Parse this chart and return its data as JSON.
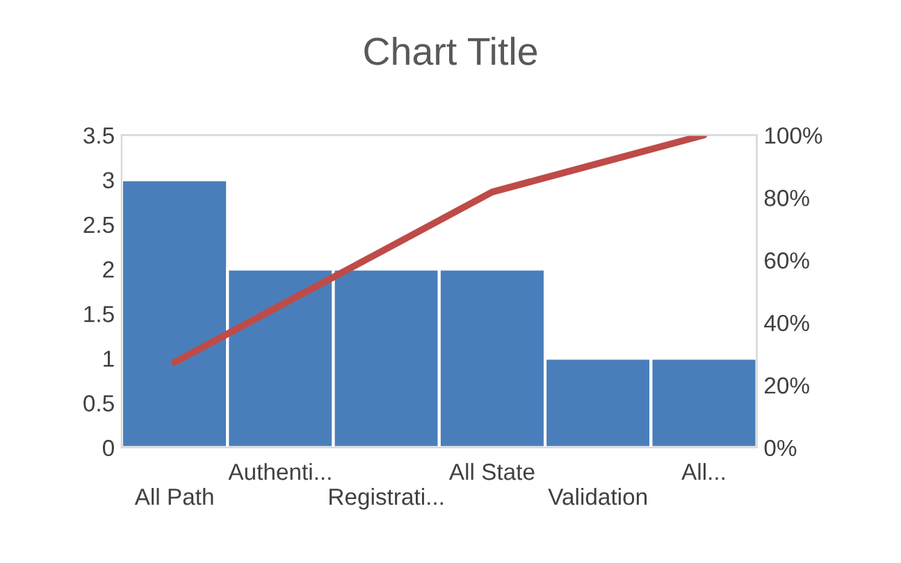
{
  "chart_data": {
    "type": "bar",
    "title": "Chart Title",
    "categories": [
      "All Path",
      "Authenti...",
      "Registrati...",
      "All State",
      "Validation",
      "All..."
    ],
    "series": [
      {
        "color": "#4a7ebb",
        "values": [
          3,
          2,
          2,
          2,
          1,
          1
        ]
      },
      {
        "type": "line",
        "axis": "y2",
        "color": "#be4b48",
        "values": [
          27.3,
          45.5,
          63.6,
          81.8,
          90.9,
          100
        ]
      }
    ],
    "ylim": [
      0,
      3.5
    ],
    "yticks": [
      0,
      0.5,
      1,
      1.5,
      2,
      2.5,
      3,
      3.5
    ],
    "y2lim": [
      0,
      100
    ],
    "y2ticks": [
      {
        "value": 0,
        "label": "0%"
      },
      {
        "value": 20,
        "label": "20%"
      },
      {
        "value": 40,
        "label": "40%"
      },
      {
        "value": 60,
        "label": "60%"
      },
      {
        "value": 80,
        "label": "80%"
      },
      {
        "value": 100,
        "label": "100%"
      }
    ],
    "grid": false,
    "marker": "none",
    "line_style": "solid"
  }
}
